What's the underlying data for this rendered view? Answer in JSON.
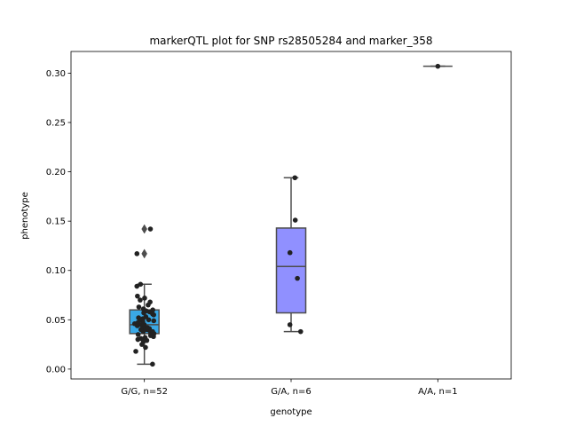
{
  "chart_data": {
    "type": "box",
    "title": "markerQTL plot for SNP rs28505284 and marker_358",
    "xlabel": "genotype",
    "ylabel": "phenotype",
    "categories": [
      "G/G, n=52",
      "G/A, n=6",
      "A/A, n=1"
    ],
    "ylim": [
      -0.01,
      0.322
    ],
    "yticks": [
      0.0,
      0.05,
      0.1,
      0.15,
      0.2,
      0.25,
      0.3
    ],
    "ytick_labels": [
      "0.00",
      "0.05",
      "0.10",
      "0.15",
      "0.20",
      "0.25",
      "0.30"
    ],
    "grid": false,
    "boxes": [
      {
        "category": "G/G, n=52",
        "whisker_low": 0.005,
        "q1": 0.036,
        "median": 0.045,
        "q3": 0.06,
        "whisker_high": 0.086,
        "color": "#3aa8e6",
        "outliers": [
          0.117,
          0.142
        ]
      },
      {
        "category": "G/A, n=6",
        "whisker_low": 0.038,
        "q1": 0.057,
        "median": 0.104,
        "q3": 0.143,
        "whisker_high": 0.194,
        "color": "#9090ff",
        "outliers": []
      },
      {
        "category": "A/A, n=1",
        "whisker_low": 0.307,
        "q1": 0.307,
        "median": 0.307,
        "q3": 0.307,
        "whisker_high": 0.307,
        "color": "#ff6060",
        "outliers": []
      }
    ],
    "points": [
      {
        "category": "G/G, n=52",
        "values": [
          0.005,
          0.018,
          0.022,
          0.025,
          0.028,
          0.029,
          0.03,
          0.031,
          0.032,
          0.033,
          0.034,
          0.035,
          0.036,
          0.037,
          0.038,
          0.038,
          0.039,
          0.04,
          0.04,
          0.041,
          0.042,
          0.042,
          0.043,
          0.044,
          0.045,
          0.045,
          0.046,
          0.047,
          0.048,
          0.049,
          0.05,
          0.05,
          0.051,
          0.052,
          0.053,
          0.055,
          0.056,
          0.057,
          0.058,
          0.059,
          0.06,
          0.061,
          0.063,
          0.065,
          0.068,
          0.07,
          0.072,
          0.074,
          0.084,
          0.086,
          0.117,
          0.142
        ]
      },
      {
        "category": "G/A, n=6",
        "values": [
          0.045,
          0.038,
          0.092,
          0.118,
          0.151,
          0.194
        ]
      },
      {
        "category": "A/A, n=1",
        "values": [
          0.307
        ]
      }
    ]
  }
}
